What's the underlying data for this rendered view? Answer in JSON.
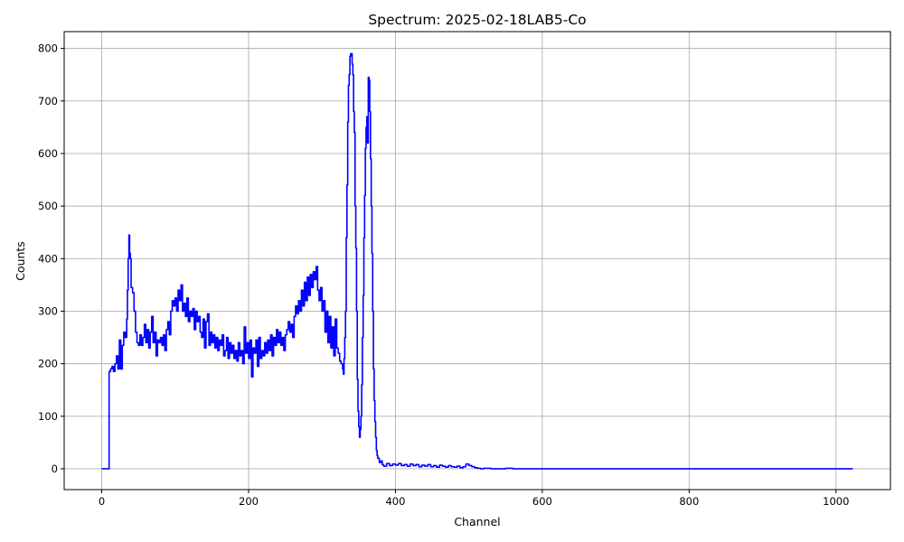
{
  "chart_data": {
    "type": "line",
    "title": "Spectrum: 2025-02-18LAB5-Co",
    "xlabel": "Channel",
    "ylabel": "Counts",
    "xlim": [
      -51.15,
      1074.15
    ],
    "ylim": [
      -39.6,
      832
    ],
    "xticks": [
      0,
      200,
      400,
      600,
      800,
      1000
    ],
    "yticks": [
      0,
      100,
      200,
      300,
      400,
      500,
      600,
      700,
      800
    ],
    "grid": true,
    "line_color": "#0000ff",
    "drawstyle": "steps",
    "series": [
      {
        "x": [
          0,
          9,
          10,
          12,
          14,
          16,
          18,
          20,
          22,
          24,
          26,
          28,
          30,
          32,
          34,
          35,
          36,
          37,
          38,
          39,
          40,
          42,
          44,
          46,
          48,
          50,
          52,
          54,
          56,
          58,
          60,
          62,
          64,
          66,
          68,
          70,
          72,
          74,
          76,
          78,
          80,
          82,
          84,
          86,
          88,
          90,
          92,
          94,
          96,
          98,
          100,
          102,
          104,
          106,
          108,
          110,
          112,
          114,
          116,
          118,
          120,
          122,
          124,
          126,
          128,
          130,
          132,
          134,
          136,
          138,
          140,
          142,
          144,
          146,
          148,
          150,
          152,
          154,
          156,
          158,
          160,
          162,
          164,
          166,
          168,
          170,
          172,
          174,
          176,
          178,
          180,
          182,
          184,
          186,
          188,
          190,
          192,
          194,
          196,
          198,
          200,
          202,
          204,
          206,
          208,
          210,
          212,
          214,
          216,
          218,
          220,
          222,
          224,
          226,
          228,
          230,
          232,
          234,
          236,
          238,
          240,
          242,
          244,
          246,
          248,
          250,
          252,
          254,
          256,
          258,
          260,
          262,
          264,
          266,
          268,
          270,
          272,
          274,
          276,
          278,
          280,
          282,
          284,
          286,
          288,
          290,
          292,
          294,
          296,
          298,
          300,
          302,
          304,
          306,
          308,
          310,
          312,
          314,
          316,
          318,
          320,
          322,
          324,
          326,
          328,
          329,
          330,
          331,
          332,
          333,
          334,
          335,
          336,
          337,
          338,
          339,
          340,
          341,
          342,
          343,
          344,
          345,
          346,
          347,
          348,
          349,
          350,
          351,
          352,
          353,
          354,
          355,
          356,
          357,
          358,
          359,
          360,
          361,
          362,
          363,
          364,
          365,
          366,
          367,
          368,
          369,
          370,
          371,
          372,
          373,
          374,
          375,
          376,
          378,
          380,
          382,
          384,
          388,
          392,
          396,
          400,
          404,
          408,
          412,
          416,
          420,
          424,
          428,
          432,
          436,
          440,
          444,
          448,
          452,
          456,
          460,
          464,
          468,
          472,
          476,
          480,
          484,
          488,
          492,
          496,
          500,
          504,
          508,
          512,
          516,
          520,
          530,
          550,
          560,
          1023
        ],
        "y": [
          0,
          0,
          185,
          190,
          195,
          185,
          200,
          215,
          190,
          245,
          190,
          235,
          260,
          250,
          285,
          340,
          400,
          445,
          410,
          400,
          345,
          335,
          300,
          260,
          240,
          235,
          255,
          235,
          250,
          275,
          240,
          265,
          230,
          260,
          290,
          240,
          260,
          215,
          245,
          240,
          250,
          235,
          255,
          225,
          265,
          280,
          255,
          300,
          320,
          310,
          325,
          300,
          340,
          320,
          350,
          300,
          315,
          290,
          325,
          280,
          300,
          290,
          305,
          265,
          300,
          280,
          290,
          260,
          250,
          285,
          230,
          280,
          295,
          235,
          260,
          240,
          255,
          230,
          250,
          225,
          245,
          235,
          255,
          215,
          225,
          250,
          210,
          240,
          220,
          235,
          210,
          225,
          205,
          240,
          215,
          225,
          200,
          270,
          220,
          240,
          210,
          245,
          175,
          230,
          220,
          245,
          195,
          250,
          210,
          225,
          215,
          240,
          220,
          245,
          225,
          255,
          215,
          250,
          235,
          265,
          240,
          260,
          235,
          250,
          225,
          255,
          265,
          280,
          260,
          275,
          250,
          290,
          310,
          295,
          320,
          300,
          340,
          310,
          355,
          320,
          365,
          330,
          370,
          345,
          375,
          360,
          385,
          340,
          320,
          345,
          300,
          320,
          260,
          300,
          240,
          290,
          230,
          270,
          215,
          285,
          230,
          220,
          205,
          200,
          190,
          180,
          210,
          250,
          300,
          440,
          540,
          660,
          730,
          750,
          785,
          790,
          790,
          770,
          750,
          680,
          640,
          500,
          420,
          300,
          170,
          110,
          80,
          60,
          75,
          100,
          160,
          250,
          330,
          440,
          520,
          610,
          650,
          670,
          620,
          745,
          740,
          680,
          590,
          500,
          410,
          300,
          190,
          130,
          90,
          60,
          35,
          25,
          20,
          12,
          15,
          8,
          5,
          10,
          6,
          9,
          7,
          10,
          6,
          8,
          5,
          9,
          6,
          8,
          4,
          7,
          5,
          8,
          4,
          6,
          3,
          7,
          5,
          3,
          6,
          4,
          3,
          5,
          2,
          4,
          9,
          6,
          4,
          2,
          1,
          0,
          1,
          0,
          1,
          0,
          0
        ]
      }
    ]
  }
}
